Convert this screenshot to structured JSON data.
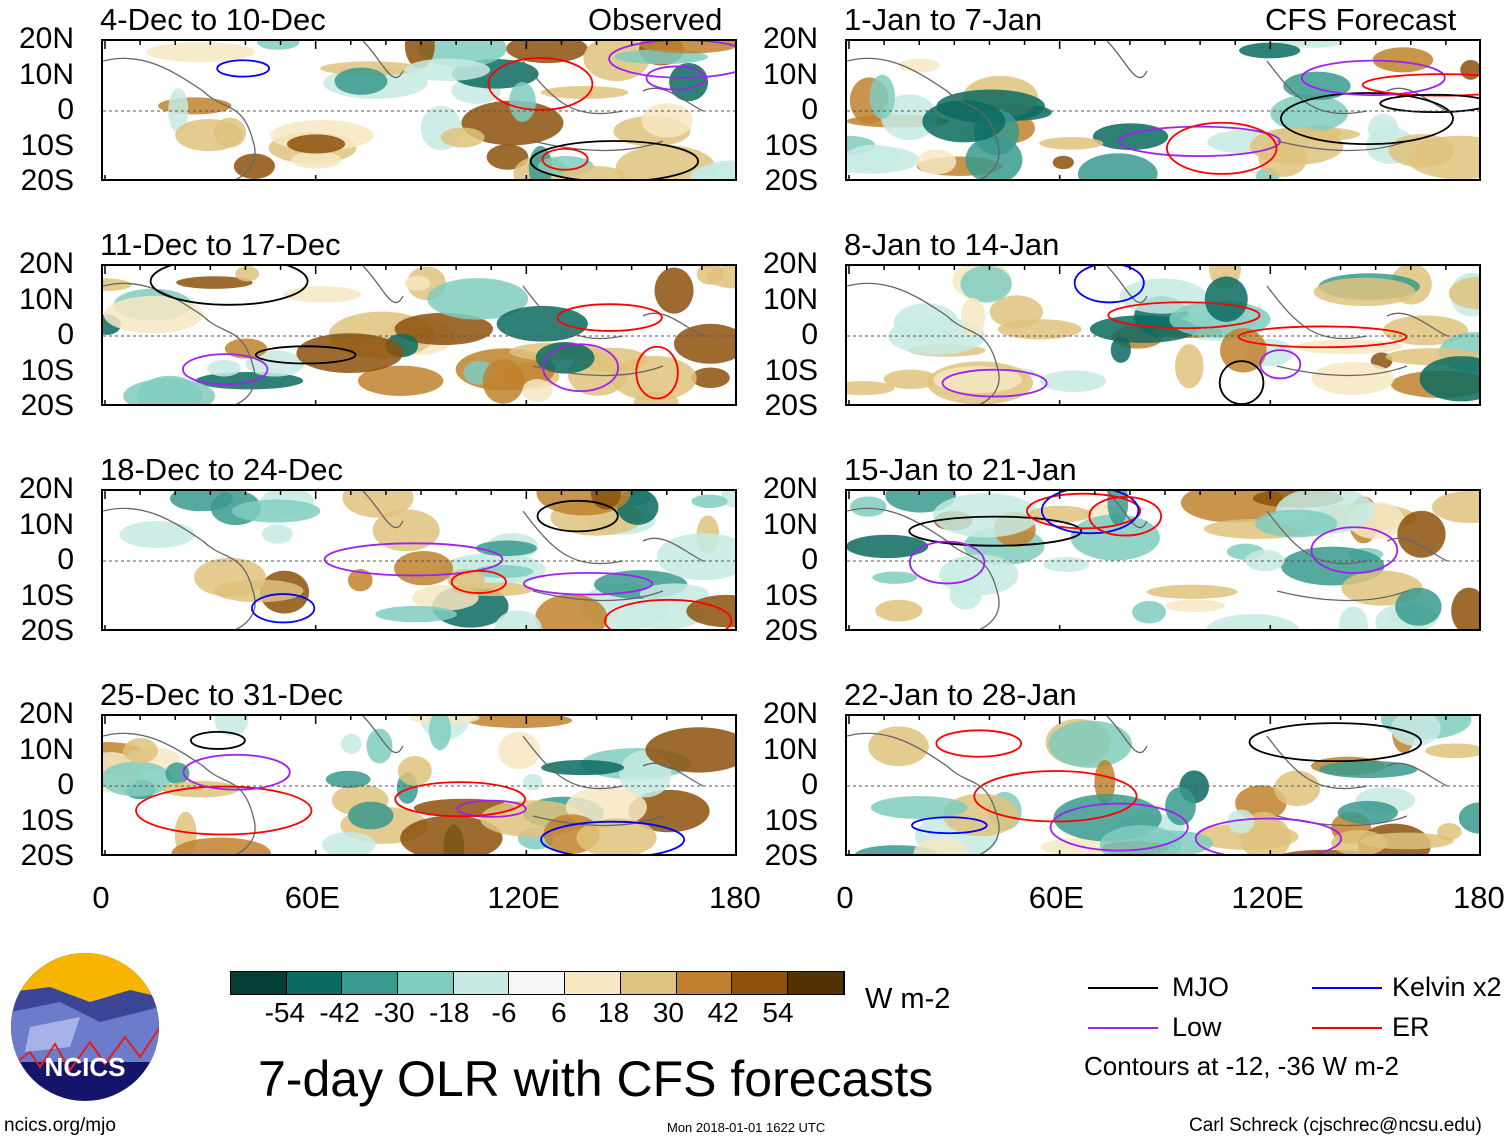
{
  "header": {
    "observed_label": "Observed",
    "forecast_label": "CFS Forecast"
  },
  "lat_labels": [
    "20N",
    "10N",
    "0",
    "10S",
    "20S"
  ],
  "lon_labels": [
    "0",
    "60E",
    "120E",
    "180"
  ],
  "panels_observed": [
    {
      "title": "4-Dec to 10-Dec"
    },
    {
      "title": "11-Dec to 17-Dec"
    },
    {
      "title": "18-Dec to 24-Dec"
    },
    {
      "title": "25-Dec to 31-Dec"
    }
  ],
  "panels_forecast": [
    {
      "title": "1-Jan to 7-Jan"
    },
    {
      "title": "8-Jan to 14-Jan"
    },
    {
      "title": "15-Jan to 21-Jan"
    },
    {
      "title": "22-Jan to 28-Jan"
    }
  ],
  "colorbar": {
    "colors": [
      "#033f36",
      "#0b6b60",
      "#389a8e",
      "#80cdc0",
      "#c7eae3",
      "#f6f6f6",
      "#f6e8c3",
      "#dfc27d",
      "#bf812d",
      "#8c510a",
      "#543005"
    ],
    "ticks": [
      "-54",
      "-42",
      "-30",
      "-18",
      "-6",
      "6",
      "18",
      "30",
      "42",
      "54"
    ],
    "units": "W m-2"
  },
  "title": "7-day OLR with CFS forecasts",
  "legend": {
    "items": [
      {
        "label": "MJO",
        "color": "#000000"
      },
      {
        "label": "Kelvin x2",
        "color": "#0000ff"
      },
      {
        "label": "Low",
        "color": "#a020f0"
      },
      {
        "label": "ER",
        "color": "#ff0000"
      }
    ],
    "contours_note": "Contours at -12, -36 W m-2"
  },
  "logo": {
    "text": "NCICS"
  },
  "footer": {
    "url": "ncics.org/mjo",
    "timestamp": "Mon 2018-01-01 1622 UTC",
    "author": "Carl Schreck (cjschrec@ncsu.edu)"
  }
}
